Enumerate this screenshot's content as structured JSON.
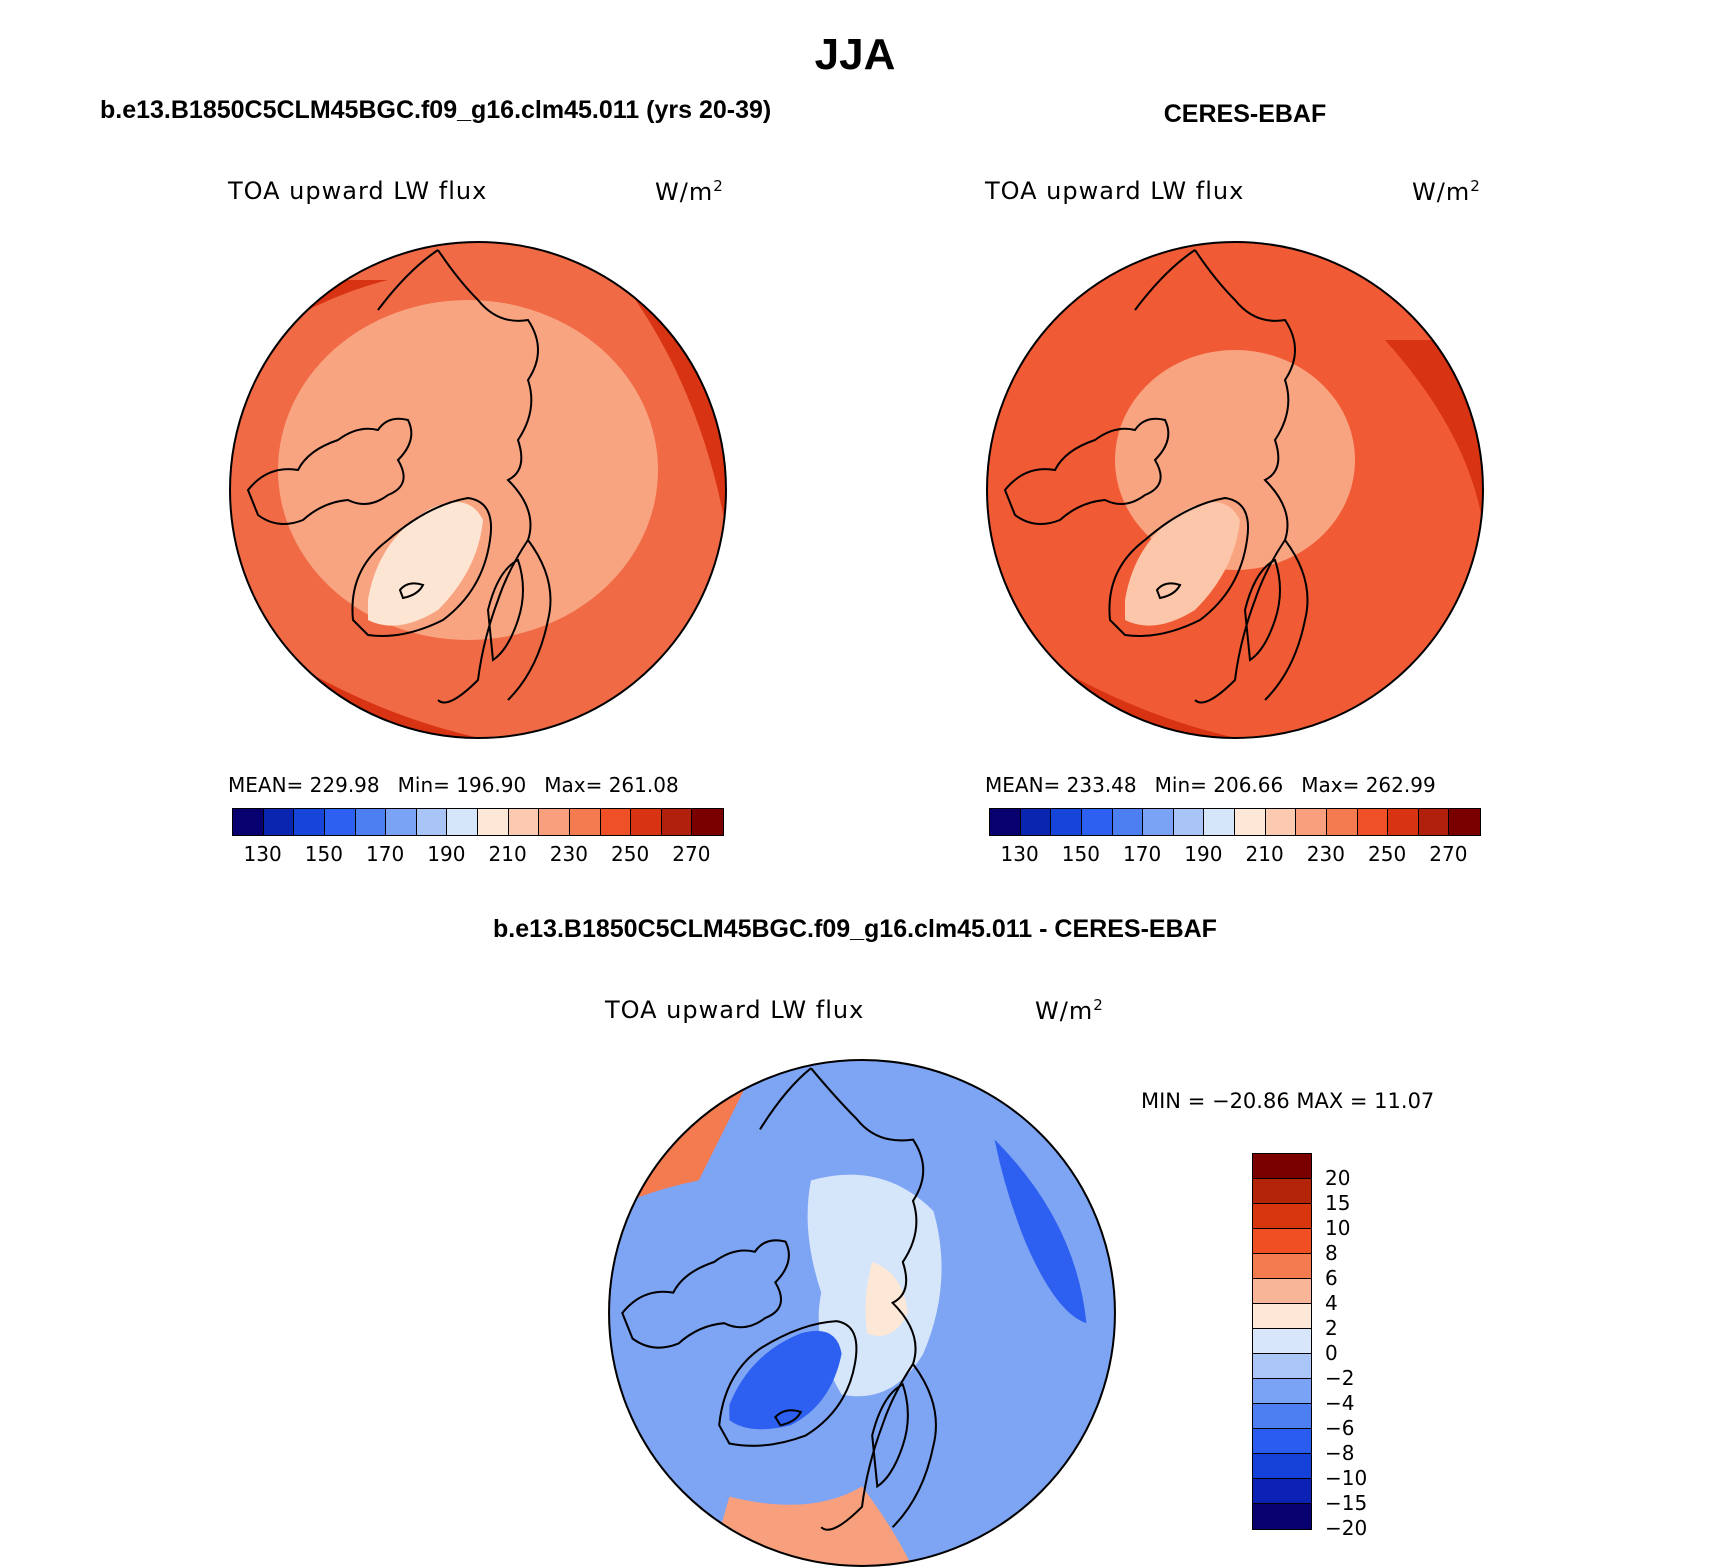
{
  "page": {
    "title": "JJA"
  },
  "panels": [
    {
      "name": "model",
      "subtitle": "b.e13.B1850C5CLM45BGC.f09_g16.clm45.011 (yrs 20-39)",
      "variable": "TOA upward LW flux",
      "units_base": "W/m",
      "units_exp": "2",
      "stats": {
        "mean": "MEAN= 229.98",
        "min": "Min= 196.90",
        "max": "Max= 261.08"
      },
      "base_color": "#ef6a45",
      "pole_color": "#f9a481",
      "greenland_color": "#fde5d4"
    },
    {
      "name": "obs",
      "subtitle": "CERES-EBAF",
      "variable": "TOA upward LW flux",
      "units_base": "W/m",
      "units_exp": "2",
      "stats": {
        "mean": "MEAN= 233.48",
        "min": "Min= 206.66",
        "max": "Max= 262.99"
      },
      "base_color": "#f05a34",
      "pole_color": "#f9a481",
      "greenland_color": "#fbc6a9"
    }
  ],
  "abs_colorbar": {
    "colors": [
      "#08006e",
      "#0a25b0",
      "#1744d9",
      "#2d60f0",
      "#4d7ef2",
      "#7aa2f5",
      "#a9c4f7",
      "#d5e5fa",
      "#fde7d6",
      "#fbcab0",
      "#f8a07d",
      "#f47a50",
      "#ef5028",
      "#d83312",
      "#b0200c",
      "#7a0000"
    ],
    "ticks": [
      "130",
      "150",
      "170",
      "190",
      "210",
      "230",
      "250",
      "270"
    ]
  },
  "difference": {
    "subtitle": "b.e13.B1850C5CLM45BGC.f09_g16.clm45.011 - CERES-EBAF",
    "variable": "TOA upward LW flux",
    "units_base": "W/m",
    "units_exp": "2",
    "stats": "MIN = −20.86 MAX =   11.07",
    "base_color": "#7ea4f4",
    "colors": [
      "#7a0000",
      "#b42408",
      "#d8360e",
      "#ef4f22",
      "#f47a50",
      "#f9b597",
      "#fde7d6",
      "#d7e6fa",
      "#aac5f7",
      "#7aa2f5",
      "#4d7ef2",
      "#2a5cef",
      "#1541d8",
      "#0b22b4",
      "#08006e"
    ],
    "ticks": [
      "20",
      "15",
      "10",
      "8",
      "6",
      "4",
      "2",
      "0",
      "−2",
      "−4",
      "−6",
      "−8",
      "−10",
      "−15",
      "−20"
    ]
  }
}
